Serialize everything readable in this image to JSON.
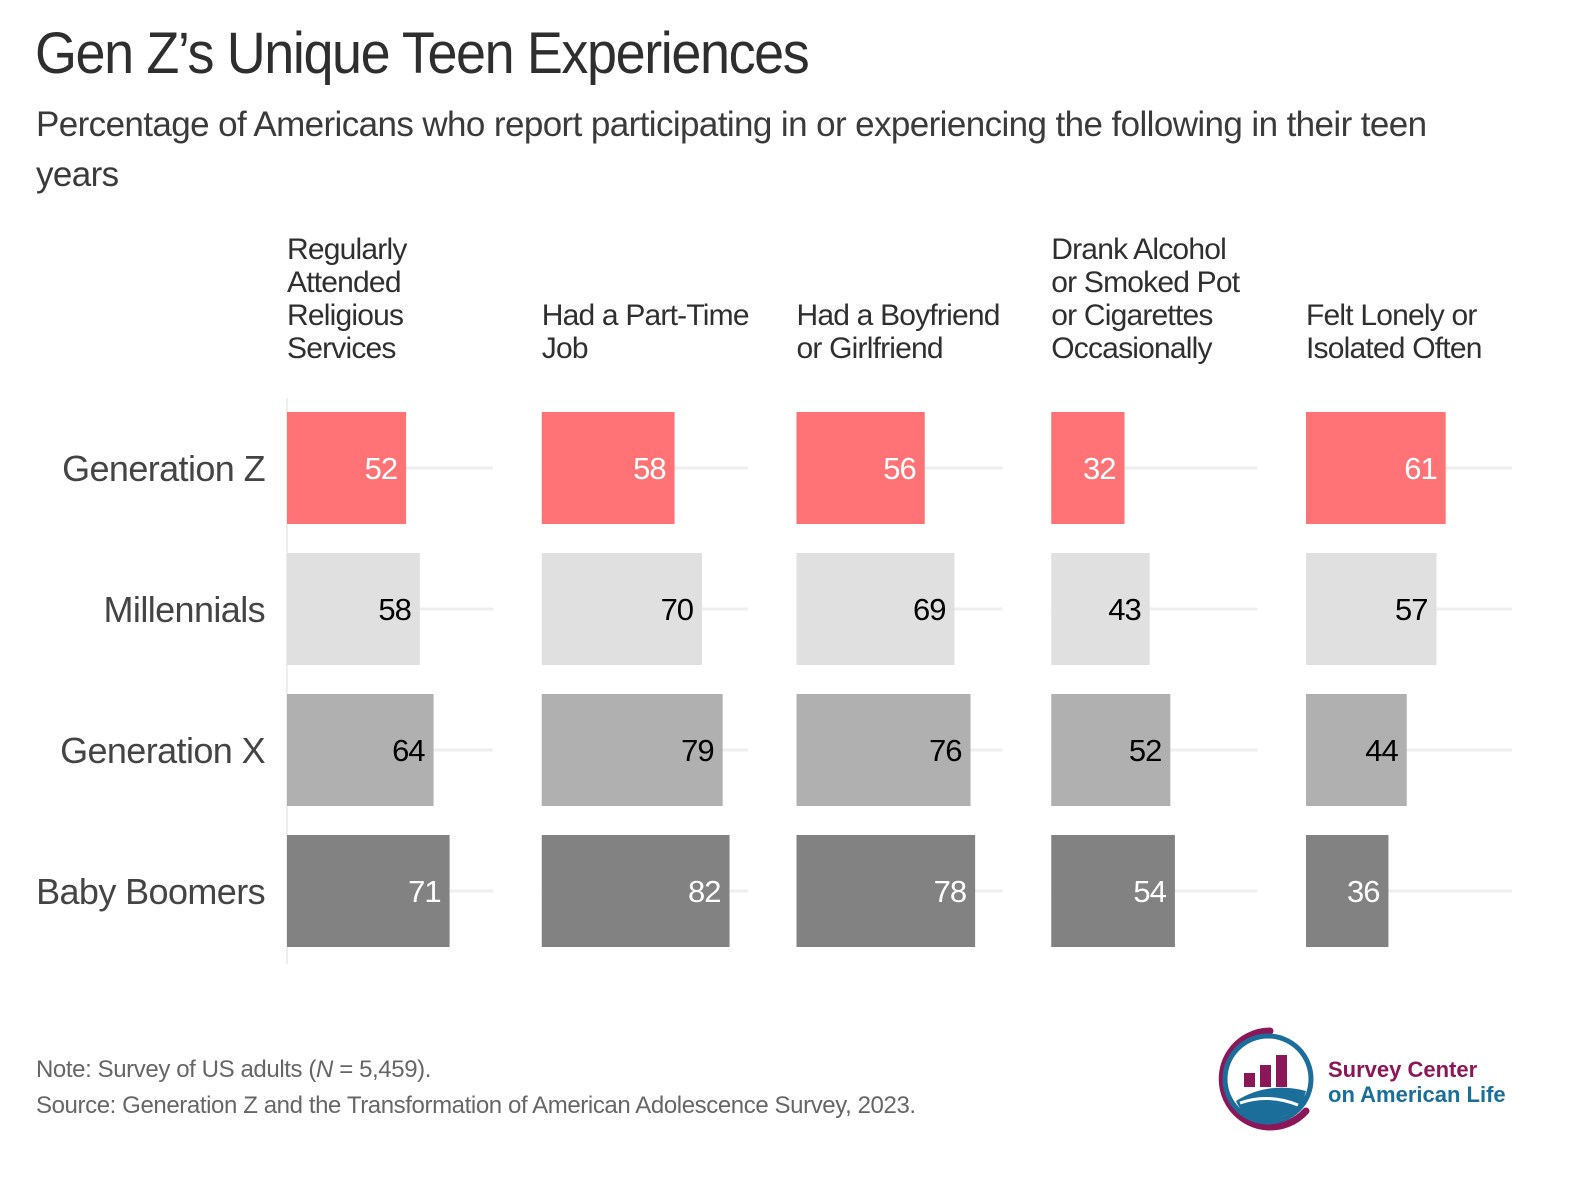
{
  "header": {
    "title": "Gen Z’s Unique Teen Experiences",
    "subtitle": "Percentage of Americans who report participating in or experiencing the following in their teen years"
  },
  "colors": {
    "Generation Z": "#ff7275",
    "Millennials": "#e0e0e0",
    "Generation X": "#b0b0b0",
    "Baby Boomers": "#828282",
    "gridline": "#eeeeee",
    "label_light": "#ffffff",
    "label_dark": "#000000"
  },
  "chart_data": {
    "type": "bar",
    "orientation": "horizontal",
    "faceted": true,
    "title": "Gen Z’s Unique Teen Experiences",
    "subtitle": "Percentage of Americans who report participating in or experiencing the following in their teen years",
    "xlabel": "",
    "ylabel": "",
    "xlim": [
      0,
      90
    ],
    "grid": true,
    "legend": "none",
    "categories": [
      "Generation Z",
      "Millennials",
      "Generation X",
      "Baby Boomers"
    ],
    "facets": [
      {
        "label": [
          "Regularly",
          "Attended",
          "Religious",
          "Services"
        ],
        "values": [
          52,
          58,
          64,
          71
        ]
      },
      {
        "label": [
          "Had a Part-Time",
          "Job"
        ],
        "values": [
          58,
          70,
          79,
          82
        ]
      },
      {
        "label": [
          "Had a Boyfriend",
          "or Girlfriend"
        ],
        "values": [
          56,
          69,
          76,
          78
        ]
      },
      {
        "label": [
          "Drank Alcohol",
          "or Smoked Pot",
          "or Cigarettes",
          "Occasionally"
        ],
        "values": [
          32,
          43,
          52,
          54
        ]
      },
      {
        "label": [
          "Felt Lonely or",
          "Isolated Often"
        ],
        "values": [
          61,
          57,
          44,
          36
        ]
      }
    ]
  },
  "footer": {
    "note_prefix": "Note: Survey of US adults (",
    "note_n": "N",
    "note_suffix": " = 5,459).",
    "source": "Source: Generation Z and the Transformation of American Adolescence Survey, 2023."
  },
  "logo": {
    "icon": "survey-center-logo-icon",
    "line1": "Survey Center",
    "line2": "on American Life"
  }
}
